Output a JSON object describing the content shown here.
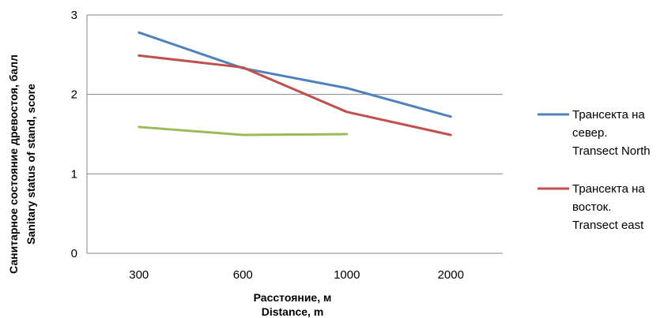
{
  "chart_data": {
    "type": "line",
    "categories": [
      "300",
      "600",
      "1000",
      "2000"
    ],
    "series": [
      {
        "name": "Трансекта на север. Transect North",
        "legend_lines": [
          "Трансекта на",
          "север.",
          "Transect North"
        ],
        "color": "#4f81bd",
        "values": [
          2.78,
          2.33,
          2.08,
          1.72
        ]
      },
      {
        "name": "Трансекта на восток. Transect east",
        "legend_lines": [
          "Трансекта на",
          "восток.",
          "Transect east"
        ],
        "color": "#c0504d",
        "values": [
          2.49,
          2.34,
          1.78,
          1.49
        ]
      },
      {
        "name": "",
        "legend_lines": [],
        "color": "#9bbb59",
        "values": [
          1.59,
          1.49,
          1.5,
          null
        ]
      }
    ],
    "yticks": [
      "0",
      "1",
      "2",
      "3"
    ],
    "ylim": [
      0,
      3
    ],
    "grid": true,
    "legend_position": "right",
    "xlabel_lines": [
      "Расстояние,  м",
      "Distance,  m"
    ],
    "ylabel_lines": [
      "Санитарное  состояние  древостоя,  балл",
      "Sanitary status of stand, score"
    ]
  }
}
